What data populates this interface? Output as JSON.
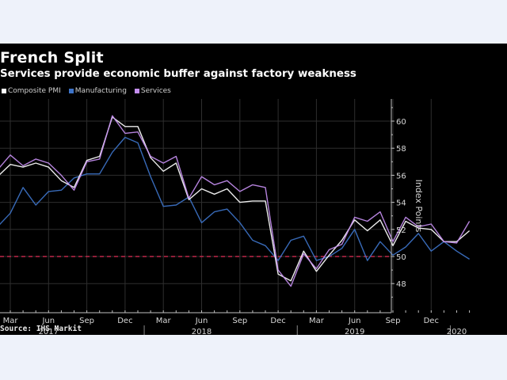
{
  "chart_data": {
    "type": "line",
    "title": "French Split",
    "subtitle": "Services provide economic buffer against factory weakness",
    "xlabel": "",
    "ylabel": "Index Points",
    "ylim": [
      47,
      61
    ],
    "yticks": [
      48,
      50,
      52,
      54,
      56,
      58,
      60
    ],
    "grid": true,
    "legend_position": "top-left",
    "reference_line": {
      "value": 50,
      "style": "dashed",
      "color": "#c0284a"
    },
    "x_start_month": "2017-02",
    "x_months": 38,
    "x_ticks": [
      {
        "index": 1,
        "label": "Mar"
      },
      {
        "index": 4,
        "label": "Jun"
      },
      {
        "index": 7,
        "label": "Sep"
      },
      {
        "index": 10,
        "label": "Dec"
      },
      {
        "index": 13,
        "label": "Mar"
      },
      {
        "index": 16,
        "label": "Jun"
      },
      {
        "index": 19,
        "label": "Sep"
      },
      {
        "index": 22,
        "label": "Dec"
      },
      {
        "index": 25,
        "label": "Mar"
      },
      {
        "index": 28,
        "label": "Jun"
      },
      {
        "index": 31,
        "label": "Sep"
      },
      {
        "index": 34,
        "label": "Dec"
      }
    ],
    "year_labels": [
      {
        "index": 4,
        "label": "2017"
      },
      {
        "index": 16,
        "label": "2018"
      },
      {
        "index": 28,
        "label": "2019"
      },
      {
        "index": 36,
        "label": "2020"
      }
    ],
    "year_dividers": [
      11,
      23,
      35
    ],
    "series": [
      {
        "name": "Manufacturing",
        "color": "#3d73c8",
        "values": [
          52.2,
          53.2,
          55.1,
          53.8,
          54.8,
          54.9,
          55.8,
          56.1,
          56.1,
          57.7,
          58.8,
          58.4,
          55.9,
          53.7,
          53.8,
          54.4,
          52.5,
          53.3,
          53.5,
          52.5,
          51.2,
          50.8,
          49.7,
          51.2,
          51.5,
          49.7,
          50.0,
          50.6,
          52.0,
          49.7,
          51.1,
          50.1,
          50.7,
          51.7,
          50.4,
          51.1,
          50.4,
          49.8
        ]
      },
      {
        "name": "Composite PMI",
        "color": "#ffffff",
        "values": [
          55.9,
          56.8,
          56.6,
          56.9,
          56.6,
          55.6,
          55.1,
          57.1,
          57.4,
          60.3,
          59.6,
          59.6,
          57.3,
          56.3,
          56.9,
          54.2,
          55.0,
          54.6,
          55.0,
          54.0,
          54.1,
          54.1,
          48.7,
          48.2,
          50.4,
          48.9,
          50.1,
          51.2,
          52.7,
          51.9,
          52.7,
          50.8,
          52.6,
          52.1,
          52.0,
          51.1,
          51.1,
          51.9
        ]
      },
      {
        "name": "Services",
        "color": "#c48ef0",
        "values": [
          56.4,
          57.5,
          56.7,
          57.2,
          56.9,
          56.0,
          54.9,
          57.0,
          57.2,
          60.4,
          59.1,
          59.2,
          57.4,
          56.9,
          57.4,
          54.3,
          55.9,
          55.3,
          55.6,
          54.8,
          55.3,
          55.1,
          49.0,
          47.8,
          50.2,
          49.1,
          50.5,
          50.9,
          52.9,
          52.6,
          53.3,
          51.1,
          52.9,
          52.2,
          52.4,
          51.1,
          51.0,
          52.6
        ]
      }
    ]
  },
  "header": {
    "title": "French Split",
    "subtitle": "Services provide economic buffer against factory weakness"
  },
  "legend": [
    {
      "label": "Composite PMI",
      "color": "#ffffff"
    },
    {
      "label": "Manufacturing",
      "color": "#3d73c8"
    },
    {
      "label": "Services",
      "color": "#c48ef0"
    }
  ],
  "footer": {
    "source": "Source: IHS Markit"
  }
}
